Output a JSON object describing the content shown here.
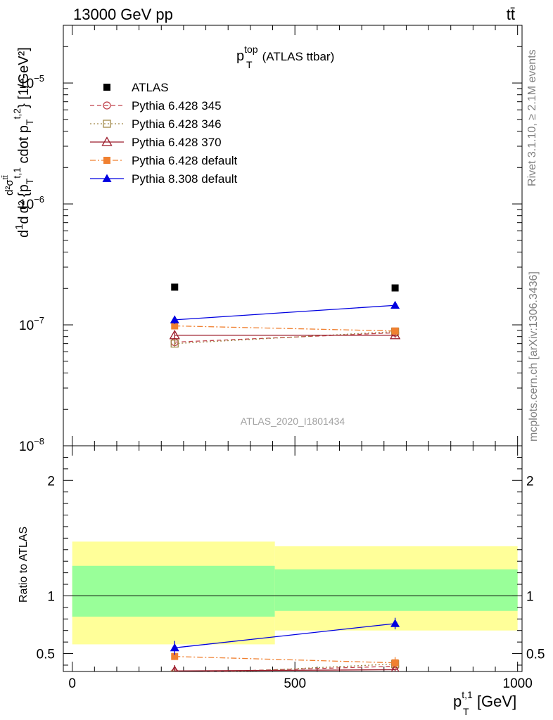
{
  "header": {
    "left": "13000 GeV pp",
    "right": "tt̄"
  },
  "side_text": {
    "rivet": "Rivet 3.1.10, ≥ 2.1M events",
    "mcplots": "mcplots.cern.ch [arXiv:1306.3436]"
  },
  "analysis_id": "ATLAS_2020_I1801434",
  "colors": {
    "ATLAS": "#000000",
    "Pythia 6.428 345": "#c0404a",
    "Pythia 6.428 346": "#a08848",
    "Pythia 6.428 370": "#9b1b2a",
    "Pythia 6.428 default": "#f08030",
    "Pythia 8.308 default": "#0000e0",
    "band_inner": "#99ff99",
    "band_outer": "#ffff99"
  },
  "chart_data": [
    {
      "type": "scatter",
      "panel": "main",
      "title": "p_T^top (ATLAS ttbar)",
      "title_parts": {
        "p": "p",
        "sub": "T",
        "sup": "top",
        "rest": "(ATLAS ttbar)"
      },
      "ylabel": "d(1/σ)dσ^{tt̄}/d²{p_T^{t,1} cdot p_T^{t,2}} [1/GeV²]",
      "ylabel_parts": {
        "a": "d",
        "b": "1",
        "c": "σ",
        "d": "d",
        "e": "d²σ",
        "f": "tt̄",
        "g": "d² {p",
        "h": "T",
        "i": "t,1",
        "j": " cdot p",
        "k": "T",
        "l": "t,2",
        "m": "} [1/GeV²]"
      },
      "yscale": "log",
      "xlim": [
        -20,
        1010
      ],
      "ylim": [
        1e-08,
        3e-05
      ],
      "y_ticks": [
        {
          "value": 1e-05,
          "base": "10",
          "exp": "−5"
        },
        {
          "value": 1e-06,
          "base": "10",
          "exp": "−6"
        },
        {
          "value": 1e-07,
          "base": "10",
          "exp": "−7"
        },
        {
          "value": 1e-08,
          "base": "10",
          "exp": "−8"
        }
      ],
      "legend_position": "top-left",
      "series": [
        {
          "name": "ATLAS",
          "marker": "square-filled",
          "line": "none",
          "x": [
            230,
            725
          ],
          "y": [
            2.05e-07,
            2.02e-07
          ],
          "err": [
            0,
            0
          ]
        },
        {
          "name": "Pythia 6.428 345",
          "marker": "circle-open",
          "line": "dashed",
          "x": [
            230,
            725
          ],
          "y": [
            7.2e-08,
            8.6e-08
          ],
          "err": [
            4e-09,
            4e-09
          ]
        },
        {
          "name": "Pythia 6.428 346",
          "marker": "square-open",
          "line": "dotted",
          "x": [
            230,
            725
          ],
          "y": [
            7e-08,
            8.8e-08
          ],
          "err": [
            4e-09,
            4e-09
          ]
        },
        {
          "name": "Pythia 6.428 370",
          "marker": "triangle-open",
          "line": "solid",
          "x": [
            230,
            725
          ],
          "y": [
            8.2e-08,
            8.2e-08
          ],
          "err": [
            5e-09,
            4e-09
          ]
        },
        {
          "name": "Pythia 6.428 default",
          "marker": "square-filled",
          "line": "dashdot",
          "x": [
            230,
            725
          ],
          "y": [
            9.8e-08,
            8.9e-08
          ],
          "err": [
            5e-09,
            4e-09
          ]
        },
        {
          "name": "Pythia 8.308 default",
          "marker": "triangle-filled",
          "line": "solid",
          "x": [
            230,
            725
          ],
          "y": [
            1.1e-07,
            1.45e-07
          ],
          "err": [
            8e-09,
            8e-09
          ]
        }
      ]
    },
    {
      "type": "line",
      "panel": "ratio",
      "ylabel": "Ratio to ATLAS",
      "xlabel": "p_T^{t,1} [GeV]",
      "xlabel_parts": {
        "p": "p",
        "sub": "T",
        "sup": "t,1",
        "rest": " [GeV]"
      },
      "xlim": [
        -20,
        1010
      ],
      "ylim": [
        0.345,
        2.3
      ],
      "x_ticks": [
        0,
        500,
        1000
      ],
      "y_ticks": [
        0.5,
        1,
        2
      ],
      "bands": [
        {
          "x0": 0,
          "x1": 455,
          "outer": [
            0.58,
            1.47
          ],
          "inner": [
            0.82,
            1.26
          ]
        },
        {
          "x0": 455,
          "x1": 1000,
          "outer": [
            0.7,
            1.43
          ],
          "inner": [
            0.87,
            1.23
          ]
        }
      ],
      "series": [
        {
          "name": "Pythia 6.428 345",
          "x": [
            230,
            725
          ],
          "y": [
            0.335,
            0.39
          ],
          "err": [
            0,
            0.02
          ]
        },
        {
          "name": "Pythia 6.428 346",
          "x": [
            230,
            725
          ],
          "y": [
            0.32,
            0.41
          ],
          "err": [
            0,
            0.02
          ]
        },
        {
          "name": "Pythia 6.428 370",
          "x": [
            230,
            725
          ],
          "y": [
            0.35,
            0.36
          ],
          "err": [
            0.05,
            0.02
          ]
        },
        {
          "name": "Pythia 6.428 default",
          "x": [
            230,
            725
          ],
          "y": [
            0.475,
            0.42
          ],
          "err": [
            0.03,
            0.05
          ]
        },
        {
          "name": "Pythia 8.308 default",
          "x": [
            230,
            725
          ],
          "y": [
            0.55,
            0.76
          ],
          "err": [
            0.06,
            0.05
          ]
        }
      ]
    }
  ]
}
